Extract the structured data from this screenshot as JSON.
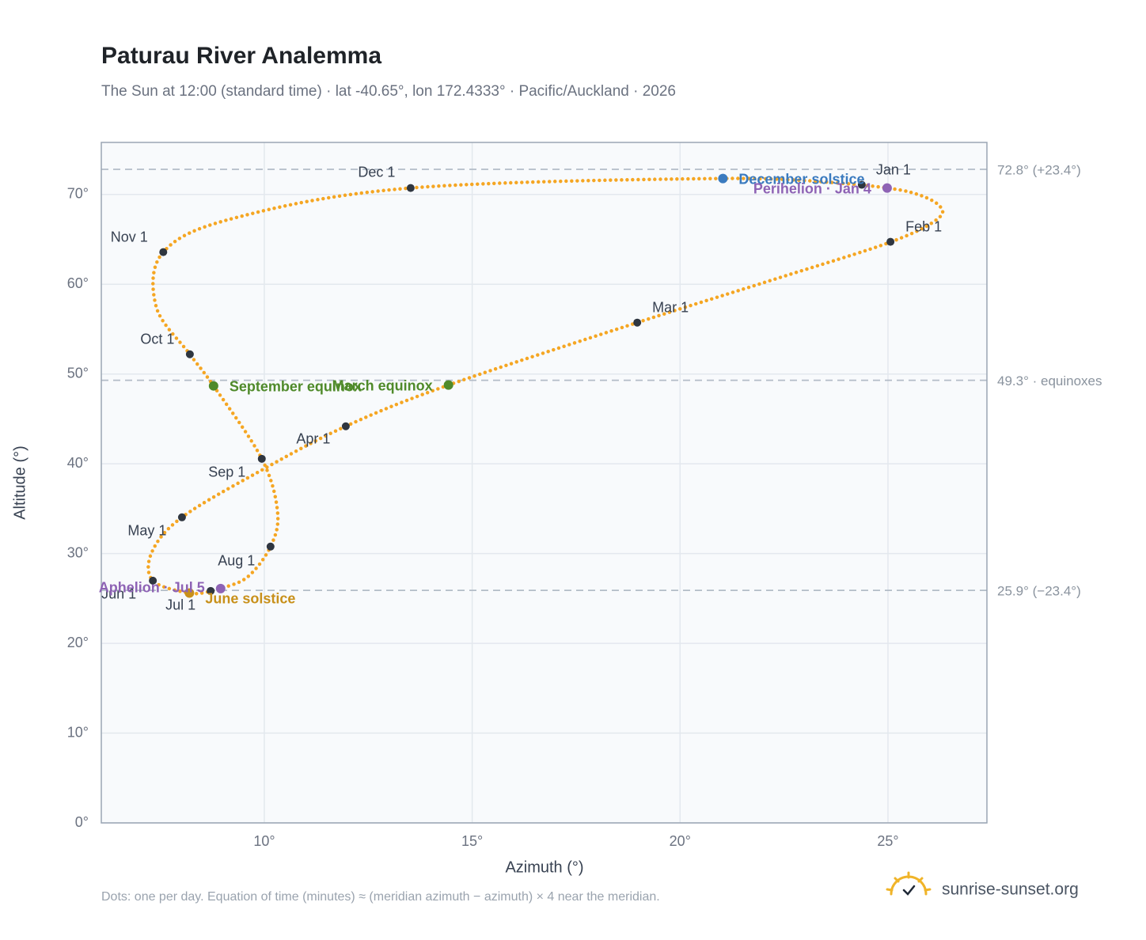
{
  "chart_data": {
    "type": "analemma",
    "title": "Paturau River Analemma",
    "subtitle": "The Sun at 12:00 (standard time) · lat -40.65°, lon 172.4333° · Pacific/Auckland · 2026",
    "x_label": "Azimuth (°)",
    "y_label": "Altitude (°)",
    "note": "Dots: one per day. Equation of time (minutes) ≈ (meridian azimuth − azimuth) × 4 near the meridian.",
    "source": "sunrise-sunset.org",
    "color": "#f5a623",
    "grid": true,
    "xlim": [
      6.08,
      27.38
    ],
    "ylim": [
      0,
      75.8
    ],
    "xticks": [
      {
        "value": 10,
        "label": "10°"
      },
      {
        "value": 15,
        "label": "15°"
      },
      {
        "value": 20,
        "label": "20°"
      },
      {
        "value": 25,
        "label": "25°"
      }
    ],
    "yticks": [
      {
        "value": 0,
        "label": "0°"
      },
      {
        "value": 10,
        "label": "10°"
      },
      {
        "value": 20,
        "label": "20°"
      },
      {
        "value": 30,
        "label": "30°"
      },
      {
        "value": 40,
        "label": "40°"
      },
      {
        "value": 50,
        "label": "50°"
      },
      {
        "value": 60,
        "label": "60°"
      },
      {
        "value": 70,
        "label": "70°"
      }
    ],
    "x": [
      24.37,
      25.5,
      26.2,
      26.2,
      25.06,
      22.3,
      18.97,
      14.43,
      11.96,
      9.9,
      8.02,
      7.3,
      7.32,
      8.2,
      8.71,
      8.95,
      9.6,
      10.15,
      10.32,
      9.94,
      8.78,
      8.21,
      7.4,
      7.57,
      9.3,
      13.52,
      21.03,
      24.2
    ],
    "y": [
      71.08,
      70.3,
      68.9,
      67.3,
      64.7,
      60.6,
      55.73,
      48.77,
      44.18,
      39.2,
      34.04,
      30.2,
      26.98,
      25.6,
      25.8,
      26.1,
      27.4,
      30.78,
      34.6,
      40.56,
      48.68,
      52.2,
      57.5,
      63.58,
      67.4,
      70.72,
      71.78,
      71.15
    ],
    "reference_lines": [
      {
        "value": 72.8,
        "label": "72.8° (+23.4°)"
      },
      {
        "value": 49.3,
        "label": "49.3° · equinoxes"
      },
      {
        "value": 25.9,
        "label": "25.9° (−23.4°)"
      }
    ],
    "month_markers": [
      {
        "label": "Jan 1",
        "x": 24.37,
        "y": 71.08
      },
      {
        "label": "Feb 1",
        "x": 25.06,
        "y": 64.73
      },
      {
        "label": "Mar 1",
        "x": 18.97,
        "y": 55.73
      },
      {
        "label": "Apr 1",
        "x": 11.96,
        "y": 44.18
      },
      {
        "label": "May 1",
        "x": 8.02,
        "y": 34.04
      },
      {
        "label": "Jun 1",
        "x": 7.32,
        "y": 26.98
      },
      {
        "label": "Jul 1",
        "x": 8.71,
        "y": 25.84
      },
      {
        "label": "Aug 1",
        "x": 10.15,
        "y": 30.78
      },
      {
        "label": "Sep 1",
        "x": 9.94,
        "y": 40.56
      },
      {
        "label": "Oct 1",
        "x": 8.21,
        "y": 52.2
      },
      {
        "label": "Nov 1",
        "x": 7.57,
        "y": 63.58
      },
      {
        "label": "Dec 1",
        "x": 13.52,
        "y": 70.72
      }
    ],
    "events": [
      {
        "label": "December solstice",
        "x": 21.03,
        "y": 71.78,
        "color": "#3b7bbf"
      },
      {
        "label": "Perihelion · Jan 4",
        "x": 24.98,
        "y": 70.72,
        "color": "#8e63b5"
      },
      {
        "label": "March equinox",
        "x": 14.43,
        "y": 48.77,
        "color": "#4f8a2a"
      },
      {
        "label": "September equinox",
        "x": 8.78,
        "y": 48.68,
        "color": "#4f8a2a"
      },
      {
        "label": "June solstice",
        "x": 8.2,
        "y": 25.6,
        "color": "#c8901a"
      },
      {
        "label": "Aphelion · Jul 5",
        "x": 8.95,
        "y": 26.1,
        "color": "#8e63b5"
      }
    ]
  }
}
